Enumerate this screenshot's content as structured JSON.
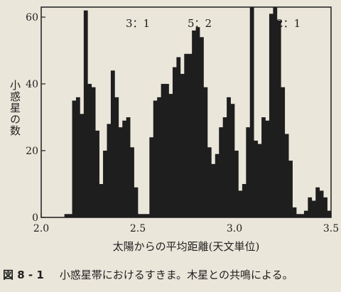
{
  "chart_data": {
    "type": "bar",
    "title": "",
    "xlabel": "太陽からの平均距離(天文単位)",
    "ylabel": "小惑星の数",
    "xlim": [
      2.0,
      3.5
    ],
    "ylim": [
      0,
      63
    ],
    "xticks": [
      "2.0",
      "2.5",
      "3.0",
      "3.5"
    ],
    "yticks": [
      "0",
      "20",
      "40",
      "60"
    ],
    "grid": false,
    "annotations": [
      {
        "label": "3：1",
        "x": 2.5
      },
      {
        "label": "5：2",
        "x": 2.82
      },
      {
        "label": "2：1",
        "x": 3.28
      }
    ],
    "bin_width": 0.02,
    "x": [
      2.1,
      2.12,
      2.14,
      2.16,
      2.18,
      2.2,
      2.22,
      2.24,
      2.26,
      2.28,
      2.3,
      2.32,
      2.34,
      2.36,
      2.38,
      2.4,
      2.42,
      2.44,
      2.46,
      2.48,
      2.5,
      2.52,
      2.54,
      2.56,
      2.58,
      2.6,
      2.62,
      2.64,
      2.66,
      2.68,
      2.7,
      2.72,
      2.74,
      2.76,
      2.78,
      2.8,
      2.82,
      2.84,
      2.86,
      2.88,
      2.9,
      2.92,
      2.94,
      2.96,
      2.98,
      3.0,
      3.02,
      3.04,
      3.06,
      3.08,
      3.1,
      3.12,
      3.14,
      3.16,
      3.18,
      3.2,
      3.22,
      3.24,
      3.26,
      3.28,
      3.3,
      3.32,
      3.34,
      3.36,
      3.38,
      3.4,
      3.42,
      3.44,
      3.46,
      3.48
    ],
    "values": [
      0,
      1,
      1,
      35,
      36,
      31,
      62,
      40,
      39,
      26,
      10,
      20,
      28,
      44,
      36,
      27,
      29,
      30,
      21,
      9,
      1,
      1,
      1,
      24,
      35,
      36,
      40,
      40,
      37,
      45,
      48,
      43,
      49,
      49,
      56,
      57,
      54,
      39,
      21,
      16,
      19,
      27,
      30,
      36,
      34,
      20,
      8,
      10,
      27,
      63,
      23,
      22,
      30,
      29,
      61,
      63,
      59,
      39,
      25,
      17,
      3,
      1,
      1,
      2,
      6,
      5,
      9,
      8,
      6,
      2
    ]
  },
  "caption": {
    "figure_no": "図 8 - 1",
    "text": "小惑星帯におけるすきま。木星との共鳴による。"
  }
}
